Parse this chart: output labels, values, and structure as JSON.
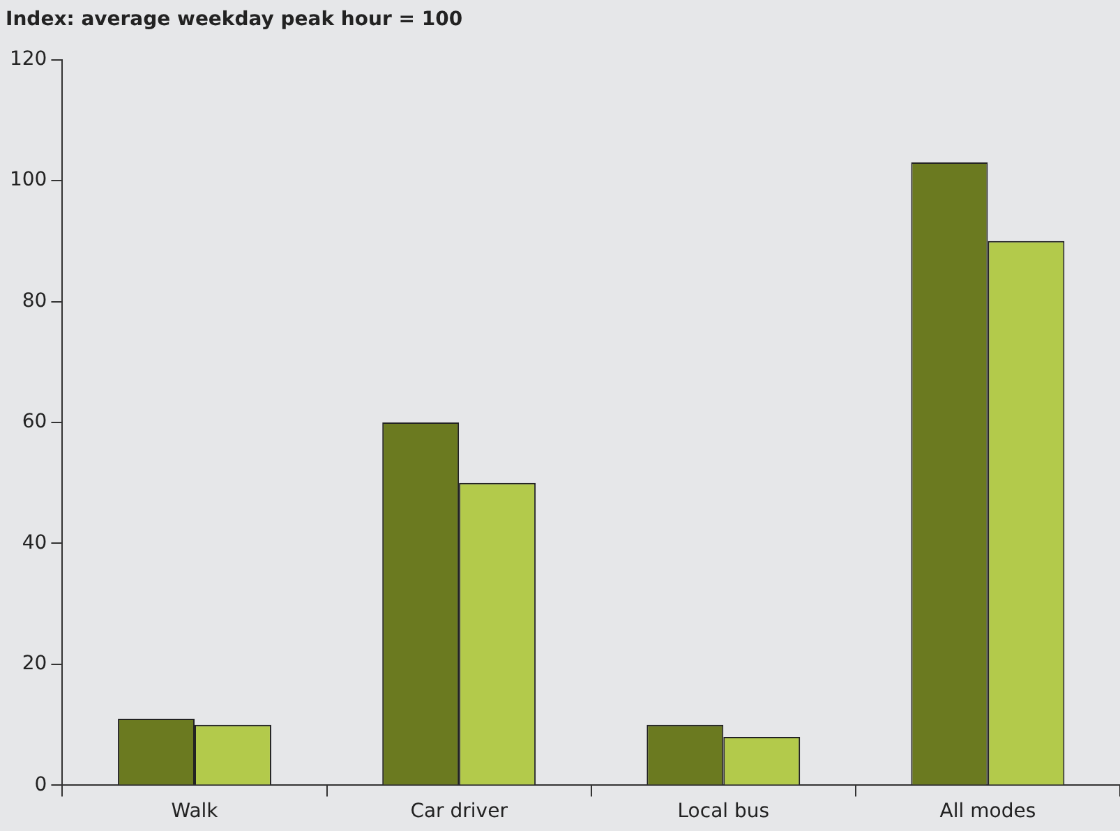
{
  "chart_data": {
    "type": "bar",
    "ylabel": "Index: average weekday peak hour = 100",
    "categories": [
      "Walk",
      "Car driver",
      "Local bus",
      "All modes"
    ],
    "series": [
      {
        "color": "#6b7a20",
        "values": [
          11,
          60,
          10,
          103
        ]
      },
      {
        "color": "#b3ca4b",
        "values": [
          10,
          50,
          8,
          90
        ]
      }
    ],
    "ylim": [
      0,
      120
    ],
    "yticks": [
      0,
      20,
      40,
      60,
      80,
      100,
      120
    ],
    "grid": false,
    "legend": false
  }
}
